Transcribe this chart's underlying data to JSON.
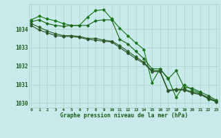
{
  "xlabel": "Graphe pression niveau de la mer (hPa)",
  "hours": [
    0,
    1,
    2,
    3,
    4,
    5,
    6,
    7,
    8,
    9,
    10,
    11,
    12,
    13,
    14,
    15,
    16,
    17,
    18,
    19,
    20,
    21,
    22,
    23
  ],
  "series": [
    [
      1034.5,
      1034.7,
      1034.55,
      1034.45,
      1034.3,
      1034.2,
      1034.2,
      1034.65,
      1035.0,
      1035.05,
      1034.55,
      1034.05,
      1033.65,
      1033.25,
      1032.9,
      1031.1,
      1031.85,
      1031.35,
      1030.3,
      1031.0,
      1030.7,
      1030.55,
      1030.2,
      1030.1
    ],
    [
      1034.4,
      1034.5,
      1034.3,
      1034.2,
      1034.15,
      1034.2,
      1034.2,
      1034.2,
      1034.45,
      1034.5,
      1034.5,
      1033.45,
      1033.2,
      1032.8,
      1032.4,
      1031.85,
      1031.85,
      1031.3,
      1031.75,
      1030.85,
      1030.8,
      1030.6,
      1030.4,
      1030.15
    ],
    [
      1034.3,
      1034.1,
      1033.9,
      1033.75,
      1033.65,
      1033.65,
      1033.6,
      1033.5,
      1033.5,
      1033.4,
      1033.35,
      1033.1,
      1032.8,
      1032.5,
      1032.2,
      1031.75,
      1031.75,
      1030.7,
      1030.75,
      1030.75,
      1030.6,
      1030.5,
      1030.3,
      1030.1
    ],
    [
      1034.2,
      1033.95,
      1033.8,
      1033.65,
      1033.6,
      1033.6,
      1033.55,
      1033.45,
      1033.4,
      1033.35,
      1033.3,
      1033.0,
      1032.7,
      1032.4,
      1032.15,
      1031.7,
      1031.7,
      1030.65,
      1030.7,
      1030.7,
      1030.55,
      1030.45,
      1030.25,
      1030.05
    ]
  ],
  "line_colors": [
    "#1a7a1a",
    "#1e6b1e",
    "#256025",
    "#2d552d"
  ],
  "bg_color": "#c8eaea",
  "grid_color": "#a8d0d0",
  "text_color": "#1a5c1a",
  "ylim": [
    1029.75,
    1035.35
  ],
  "yticks": [
    1030,
    1031,
    1032,
    1033,
    1034
  ],
  "xtick_labels": [
    "0",
    "1",
    "2",
    "3",
    "4",
    "5",
    "6",
    "7",
    "8",
    "9",
    "10",
    "11",
    "12",
    "13",
    "14",
    "15",
    "16",
    "17",
    "18",
    "19",
    "20",
    "21",
    "22",
    "23"
  ],
  "marker": "D",
  "markersize": 1.8,
  "linewidth": 0.85
}
